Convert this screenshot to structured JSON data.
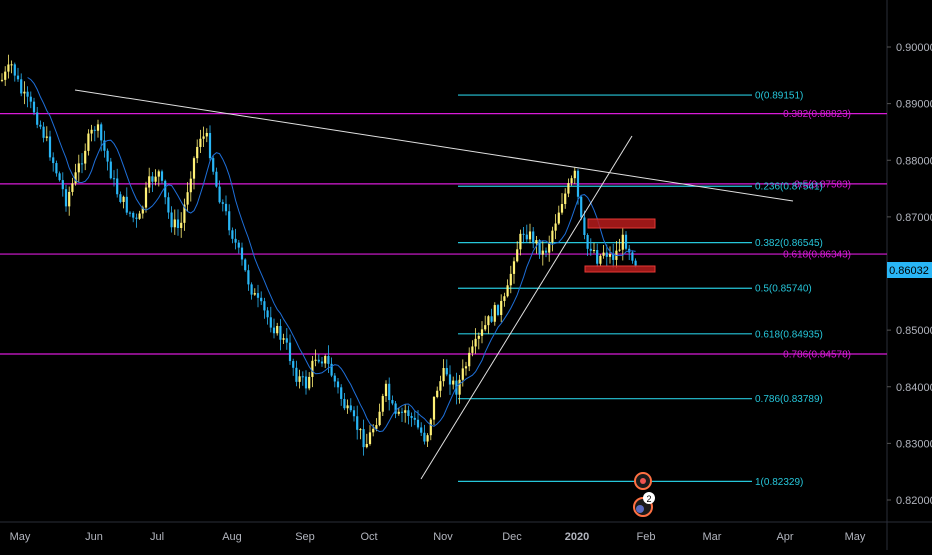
{
  "chart_data": {
    "type": "candlestick",
    "title": "",
    "ylim": [
      0.8165,
      0.9095
    ],
    "y_ticks": [
      "0.90000",
      "0.89000",
      "0.88000",
      "0.87000",
      "0.86000",
      "0.85000",
      "0.84000",
      "0.83000",
      "0.82000"
    ],
    "x_ticks": [
      "May",
      "Jun",
      "Jul",
      "Aug",
      "Sep",
      "Oct",
      "Nov",
      "Dec",
      "2020",
      "Feb",
      "Mar",
      "Apr",
      "May"
    ],
    "price_label": "0.86032",
    "colors": {
      "background": "#000000",
      "up_candle": "#fff176",
      "down_candle": "#29b6f6",
      "moving_average": "#1e6fd9",
      "fib_cyan": "#26c6da",
      "fib_magenta": "#d81bd8",
      "trendline": "#e0e0e0",
      "box": "#d32f2f",
      "price_tag": "#29b6f6"
    },
    "fib_levels_cyan": [
      {
        "label": "0(0.89151)",
        "value": 0.89151
      },
      {
        "label": "0.236(0.87541)",
        "value": 0.87541
      },
      {
        "label": "0.382(0.86545)",
        "value": 0.86545
      },
      {
        "label": "0.5(0.85740)",
        "value": 0.8574
      },
      {
        "label": "0.618(0.84935)",
        "value": 0.84935
      },
      {
        "label": "0.786(0.83789)",
        "value": 0.83789
      },
      {
        "label": "1(0.82329)",
        "value": 0.82329
      }
    ],
    "fib_levels_magenta": [
      {
        "label": "0.382(0.88823)",
        "value": 0.88823
      },
      {
        "label": "0.5(0.87583)",
        "value": 0.87583
      },
      {
        "label": "0.618(0.86343)",
        "value": 0.86343
      },
      {
        "label": "0.786(0.84578)",
        "value": 0.84578
      }
    ],
    "event_badge_count": "2"
  }
}
